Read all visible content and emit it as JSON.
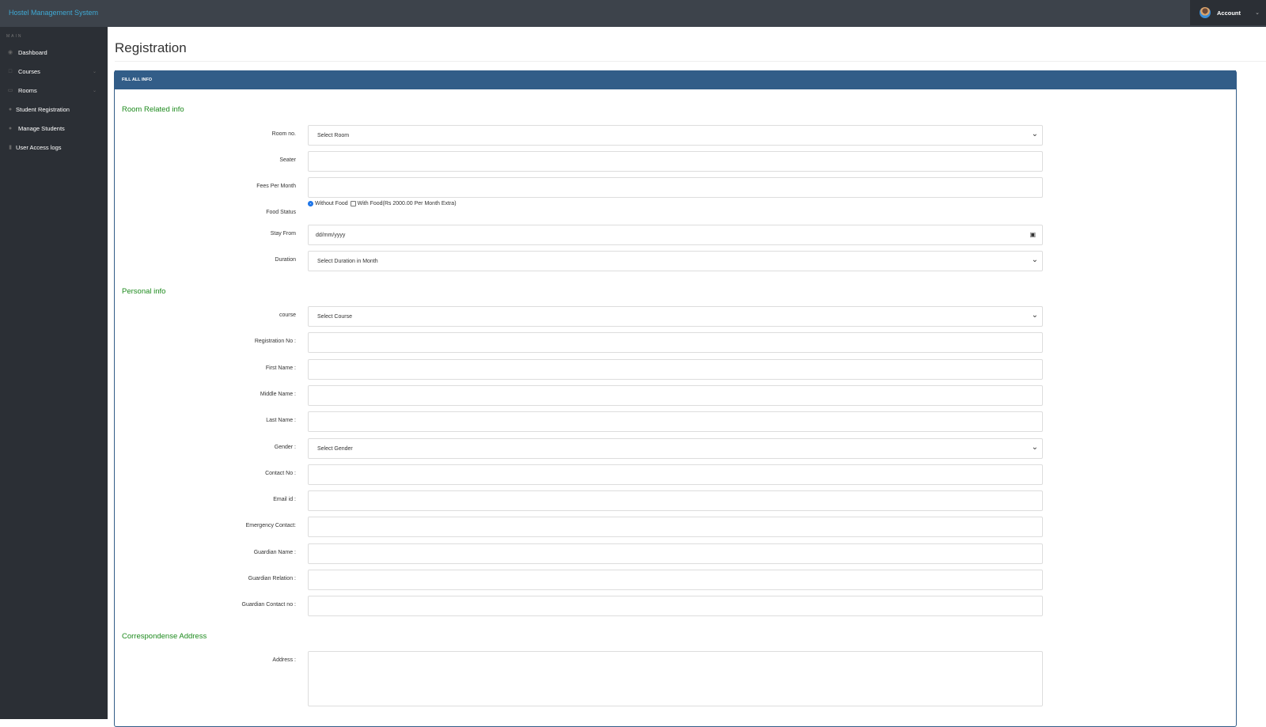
{
  "topbar": {
    "brand": "Hostel Management System",
    "account": "Account"
  },
  "sidebar": {
    "section": "MAIN",
    "items": [
      {
        "label": "Dashboard",
        "icon": "dashboard-icon",
        "expandable": false
      },
      {
        "label": "Courses",
        "icon": "book-icon",
        "expandable": true
      },
      {
        "label": "Rooms",
        "icon": "desktop-icon",
        "expandable": true
      },
      {
        "label": "Student Registration",
        "icon": "user-icon",
        "expandable": false
      },
      {
        "label": "Manage Students",
        "icon": "users-icon",
        "expandable": false
      },
      {
        "label": "User Access logs",
        "icon": "file-icon",
        "expandable": false
      }
    ]
  },
  "page": {
    "title": "Registration",
    "panel_heading": "FILL ALL INFO"
  },
  "sections": {
    "room": "Room Related info",
    "personal": "Personal info",
    "address": "Correspondense Address"
  },
  "room": {
    "room_no": {
      "label": "Room no.",
      "value": "Select Room"
    },
    "seater": {
      "label": "Seater",
      "value": ""
    },
    "fees": {
      "label": "Fees Per Month",
      "value": ""
    },
    "food": {
      "label": "Food Status",
      "opt1": "Without Food",
      "opt2": "With Food(Rs 2000.00 Per Month Extra)",
      "selected": "Without Food"
    },
    "stay_from": {
      "label": "Stay From",
      "placeholder": "dd/mm/yyyy"
    },
    "duration": {
      "label": "Duration",
      "value": "Select Duration in Month"
    }
  },
  "personal": [
    {
      "label": "course",
      "value": "Select Course",
      "select": true
    },
    {
      "label": "Registration No :",
      "value": ""
    },
    {
      "label": "First Name :",
      "value": ""
    },
    {
      "label": "Middle Name :",
      "value": ""
    },
    {
      "label": "Last Name :",
      "value": ""
    },
    {
      "label": "Gender :",
      "value": "Select Gender",
      "select": true
    },
    {
      "label": "Contact No :",
      "value": ""
    },
    {
      "label": "Email id :",
      "value": ""
    },
    {
      "label": "Emergency Contact:",
      "value": ""
    },
    {
      "label": "Guardian Name :",
      "value": ""
    },
    {
      "label": "Guardian Relation :",
      "value": ""
    },
    {
      "label": "Guardian Contact no :",
      "value": ""
    }
  ],
  "address": {
    "label": "Address :",
    "value": ""
  }
}
